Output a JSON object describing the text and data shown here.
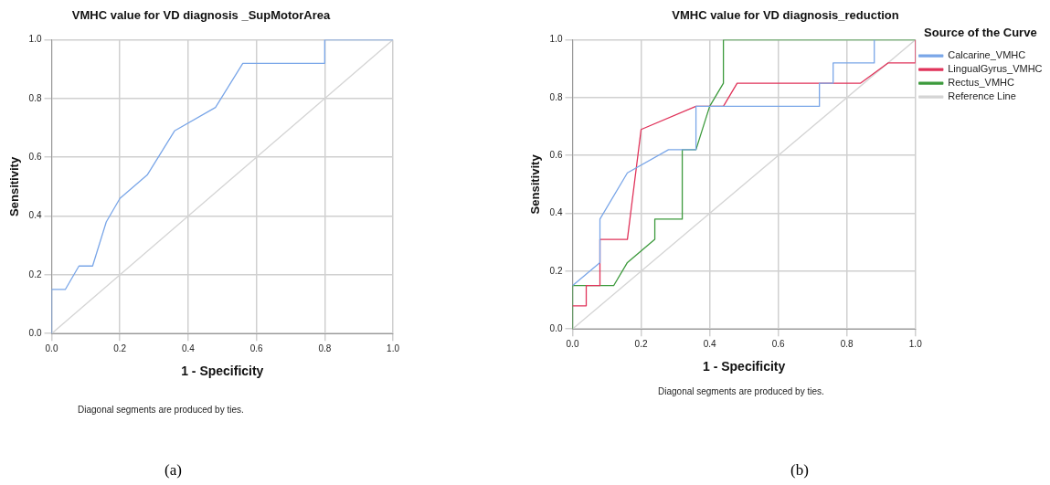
{
  "chart_data": [
    {
      "type": "line",
      "title": "VMHC value for VD diagnosis _SupMotorArea",
      "xlabel": "1 - Specificity",
      "ylabel": "Sensitivity",
      "xlim": [
        0,
        1
      ],
      "ylim": [
        0,
        1
      ],
      "xticks": [
        {
          "value": 0,
          "label": "0.0"
        },
        {
          "value": 0.2,
          "label": "0.2"
        },
        {
          "value": 0.4,
          "label": "0.4"
        },
        {
          "value": 0.6,
          "label": "0.6"
        },
        {
          "value": 0.8,
          "label": "0.8"
        },
        {
          "value": 1,
          "label": "1.0"
        }
      ],
      "yticks": [
        {
          "value": 0,
          "label": "0.0"
        },
        {
          "value": 0.2,
          "label": "0.2"
        },
        {
          "value": 0.4,
          "label": "0.4"
        },
        {
          "value": 0.6,
          "label": "0.6"
        },
        {
          "value": 0.8,
          "label": "0.8"
        },
        {
          "value": 1,
          "label": "1.0"
        }
      ],
      "grid": true,
      "legend": false,
      "marker": "none",
      "series": [
        {
          "color": "#7aa6e8",
          "x": [
            0,
            0,
            0.04,
            0.08,
            0.12,
            0.16,
            0.2,
            0.28,
            0.36,
            0.48,
            0.56,
            0.8,
            0.8,
            1
          ],
          "values": [
            0,
            0.15,
            0.15,
            0.23,
            0.23,
            0.38,
            0.46,
            0.54,
            0.69,
            0.77,
            0.92,
            0.92,
            1,
            1
          ]
        },
        {
          "color": "#d4d4d4",
          "x": [
            0,
            1
          ],
          "values": [
            0,
            1
          ]
        }
      ],
      "annotations": [
        "Diagonal segments are produced by ties.",
        "(a)"
      ]
    },
    {
      "type": "line",
      "title": "VMHC value for VD diagnosis_reduction",
      "xlabel": "1 - Specificity",
      "ylabel": "Sensitivity",
      "xlim": [
        0,
        1
      ],
      "ylim": [
        0,
        1
      ],
      "xticks": [
        {
          "value": 0,
          "label": "0.0"
        },
        {
          "value": 0.2,
          "label": "0.2"
        },
        {
          "value": 0.4,
          "label": "0.4"
        },
        {
          "value": 0.6,
          "label": "0.6"
        },
        {
          "value": 0.8,
          "label": "0.8"
        },
        {
          "value": 1,
          "label": "1.0"
        }
      ],
      "yticks": [
        {
          "value": 0,
          "label": "0.0"
        },
        {
          "value": 0.2,
          "label": "0.2"
        },
        {
          "value": 0.4,
          "label": "0.4"
        },
        {
          "value": 0.6,
          "label": "0.6"
        },
        {
          "value": 0.8,
          "label": "0.8"
        },
        {
          "value": 1,
          "label": "1.0"
        }
      ],
      "grid": true,
      "legend": "right",
      "legend_title": "Source of the Curve",
      "marker": "none",
      "series": [
        {
          "name": "Calcarine_VMHC",
          "color": "#7aa6e8",
          "x": [
            0,
            0.08,
            0.08,
            0.16,
            0.28,
            0.36,
            0.36,
            0.72,
            0.72,
            0.76,
            0.76,
            0.88,
            0.88
          ],
          "values": [
            0.15,
            0.23,
            0.38,
            0.54,
            0.62,
            0.62,
            0.77,
            0.77,
            0.85,
            0.85,
            0.92,
            0.92,
            1
          ]
        },
        {
          "name": "LingualGyrus_VMHC",
          "color": "#e0335a",
          "x": [
            0,
            0.04,
            0.04,
            0.08,
            0.08,
            0.16,
            0.2,
            0.36,
            0.44,
            0.48,
            0.84,
            0.92,
            1,
            1
          ],
          "values": [
            0.08,
            0.08,
            0.15,
            0.15,
            0.31,
            0.31,
            0.69,
            0.77,
            0.77,
            0.85,
            0.85,
            0.92,
            0.92,
            1
          ]
        },
        {
          "name": "Rectus_VMHC",
          "color": "#3c9a3c",
          "x": [
            0,
            0,
            0.12,
            0.16,
            0.24,
            0.24,
            0.32,
            0.32,
            0.36,
            0.4,
            0.44,
            0.44,
            1
          ],
          "values": [
            0,
            0.15,
            0.15,
            0.23,
            0.31,
            0.38,
            0.38,
            0.62,
            0.62,
            0.77,
            0.85,
            1,
            1
          ]
        },
        {
          "name": "Reference Line",
          "color": "#d4d4d4",
          "x": [
            0,
            1
          ],
          "values": [
            0,
            1
          ]
        }
      ],
      "annotations": [
        "Diagonal segments are produced by ties.",
        "(b)"
      ]
    }
  ]
}
